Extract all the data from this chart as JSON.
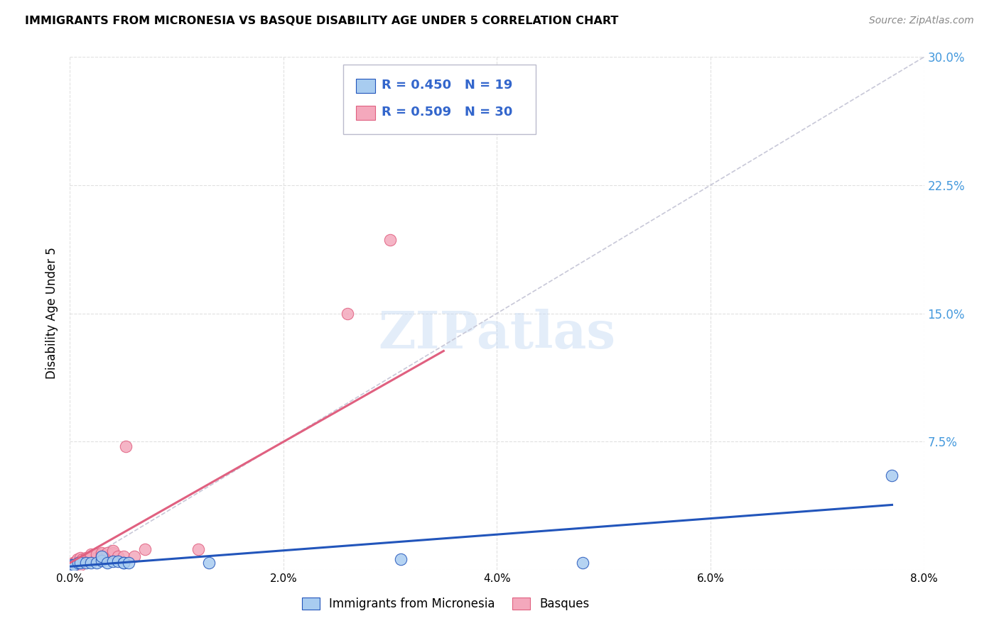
{
  "title": "IMMIGRANTS FROM MICRONESIA VS BASQUE DISABILITY AGE UNDER 5 CORRELATION CHART",
  "source": "Source: ZipAtlas.com",
  "ylabel": "Disability Age Under 5",
  "xlim": [
    0.0,
    0.08
  ],
  "ylim": [
    0.0,
    0.3
  ],
  "xticks": [
    0.0,
    0.02,
    0.04,
    0.06,
    0.08
  ],
  "yticks": [
    0.0,
    0.075,
    0.15,
    0.225,
    0.3
  ],
  "ytick_right_labels": [
    "",
    "7.5%",
    "15.0%",
    "22.5%",
    "30.0%"
  ],
  "xtick_labels": [
    "0.0%",
    "2.0%",
    "4.0%",
    "6.0%",
    "8.0%"
  ],
  "grid_color": "#e0e0e0",
  "series1_color": "#A8CCF0",
  "series2_color": "#F4A8BC",
  "trendline1_color": "#2255BB",
  "trendline2_color": "#E06080",
  "diagonal_color": "#C8C8D8",
  "series1_name": "Immigrants from Micronesia",
  "series2_name": "Basques",
  "r1": "R = 0.450",
  "n1": "N = 19",
  "r2": "R = 0.509",
  "n2": "N = 30",
  "micronesia_x": [
    0.0002,
    0.0004,
    0.0008,
    0.001,
    0.0015,
    0.002,
    0.0025,
    0.003,
    0.003,
    0.0035,
    0.004,
    0.0045,
    0.005,
    0.005,
    0.0055,
    0.013,
    0.031,
    0.048,
    0.077
  ],
  "micronesia_y": [
    0.003,
    0.003,
    0.004,
    0.004,
    0.004,
    0.004,
    0.004,
    0.0055,
    0.008,
    0.004,
    0.005,
    0.005,
    0.004,
    0.004,
    0.004,
    0.004,
    0.006,
    0.004,
    0.055
  ],
  "basque_x": [
    0.0002,
    0.0003,
    0.0005,
    0.0006,
    0.0007,
    0.001,
    0.001,
    0.001,
    0.0012,
    0.0015,
    0.0018,
    0.002,
    0.002,
    0.0025,
    0.0025,
    0.003,
    0.003,
    0.003,
    0.003,
    0.0035,
    0.004,
    0.004,
    0.0045,
    0.005,
    0.0052,
    0.006,
    0.007,
    0.012,
    0.026,
    0.03
  ],
  "basque_y": [
    0.003,
    0.004,
    0.004,
    0.005,
    0.006,
    0.003,
    0.005,
    0.007,
    0.006,
    0.007,
    0.006,
    0.007,
    0.009,
    0.007,
    0.009,
    0.007,
    0.008,
    0.009,
    0.01,
    0.01,
    0.01,
    0.011,
    0.008,
    0.008,
    0.072,
    0.008,
    0.012,
    0.012,
    0.15,
    0.193
  ],
  "trendline1_x0": 0.0,
  "trendline1_x1": 0.077,
  "trendline2_x0": 0.0,
  "trendline2_x1": 0.035,
  "trendline2_y0": 0.004,
  "trendline2_y1": 0.128
}
